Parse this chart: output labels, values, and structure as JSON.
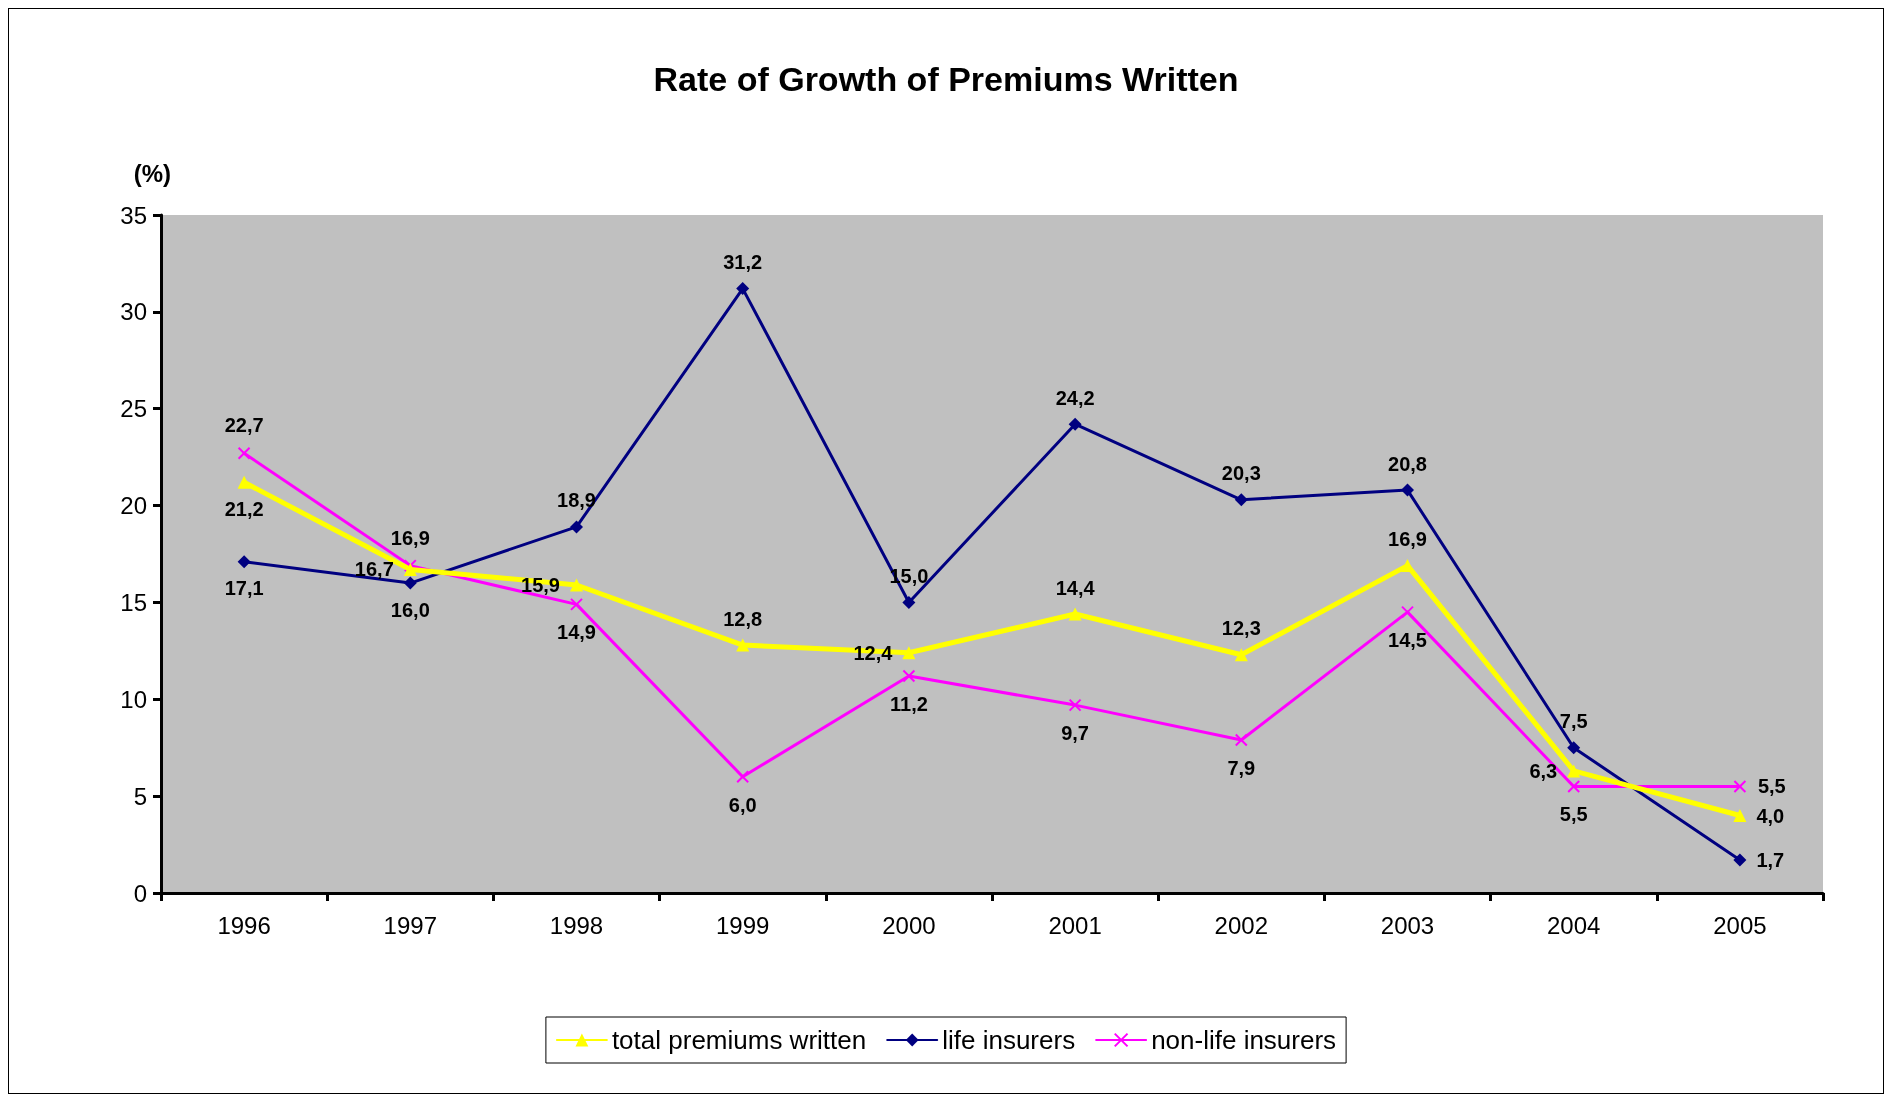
{
  "chart_data": {
    "type": "line",
    "title": "Rate of Growth of Premiums Written",
    "ylabel": "(%)",
    "categories": [
      "1996",
      "1997",
      "1998",
      "1999",
      "2000",
      "2001",
      "2002",
      "2003",
      "2004",
      "2005"
    ],
    "ylim": [
      0,
      35
    ],
    "yticks": [
      0,
      5,
      10,
      15,
      20,
      25,
      30,
      35
    ],
    "grid": false,
    "legend": "bottom",
    "series": [
      {
        "name": "total premiums written",
        "color": "#ffff00",
        "marker": "triangle",
        "values": [
          21.2,
          16.7,
          15.9,
          12.8,
          12.4,
          14.4,
          12.3,
          16.9,
          6.3,
          4.0
        ],
        "value_labels": [
          "21,2",
          "16,7",
          "15,9",
          "12,8",
          "12,4",
          "14,4",
          "12,3",
          "16,9",
          "6,3",
          "4,0"
        ]
      },
      {
        "name": "life insurers",
        "color": "#000080",
        "marker": "diamond",
        "values": [
          17.1,
          16.0,
          18.9,
          31.2,
          15.0,
          24.2,
          20.3,
          20.8,
          7.5,
          1.7
        ],
        "value_labels": [
          "17,1",
          "16,0",
          "18,9",
          "31,2",
          "15,0",
          "24,2",
          "20,3",
          "20,8",
          "7,5",
          "1,7"
        ]
      },
      {
        "name": "non-life insurers",
        "color": "#ff00ff",
        "marker": "cross",
        "values": [
          22.7,
          16.9,
          14.9,
          6.0,
          11.2,
          9.7,
          7.9,
          14.5,
          5.5,
          5.5
        ],
        "value_labels": [
          "22,7",
          "16,9",
          "14,9",
          "6,0",
          "11,2",
          "9,7",
          "7,9",
          "14,5",
          "5,5",
          "5,5"
        ]
      }
    ]
  }
}
